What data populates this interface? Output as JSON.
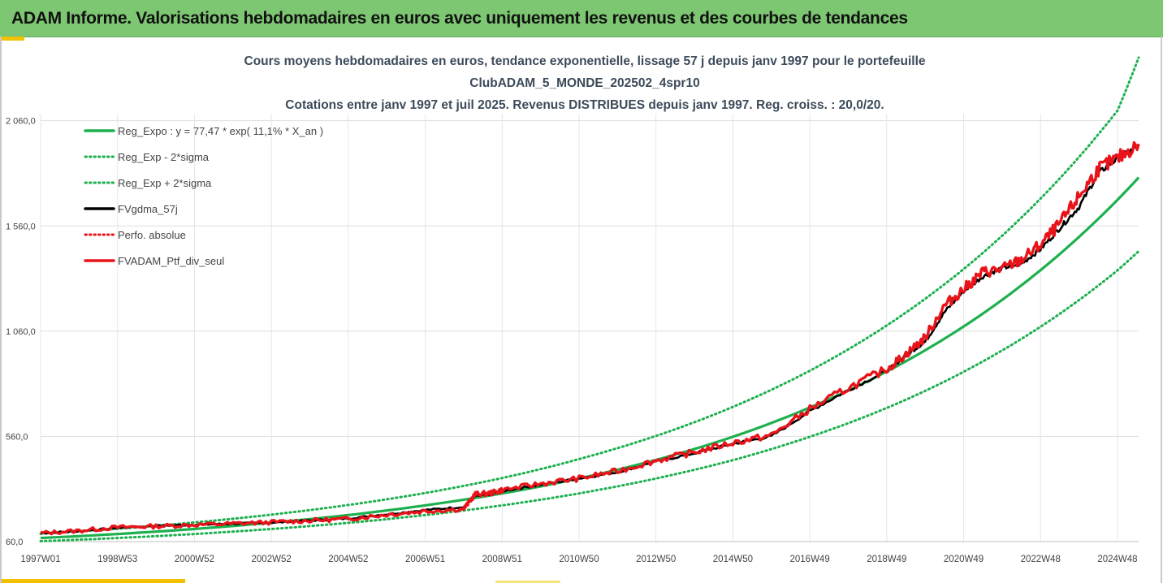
{
  "header": {
    "title": "ADAM Informe. Valorisations hebdomadaires en euros avec uniquement les revenus et des courbes de tendances"
  },
  "colors": {
    "header_bg": "#7dc672",
    "accent": "#f2c200",
    "regression": "#1db04f",
    "smoothed": "#000000",
    "portfolio": "#e8141a"
  },
  "chart_data": {
    "type": "line",
    "title_lines": [
      "Cours moyens hebdomadaires  en euros, tendance exponentielle, lissage 57 j depuis janv 1997 pour le portefeuille",
      "ClubADAM_5_MONDE_202502_4spr10",
      "Cotations  entre janv 1997 et juil 2025. Revenus DISTRIBUES depuis janv 1997. Reg. croiss. : 20,0/20."
    ],
    "ylim": [
      60,
      2460
    ],
    "y_ticks": [
      "60,0",
      "560,0",
      "1 060,0",
      "1 560,0",
      "2 060,0"
    ],
    "y_tick_values": [
      60,
      560,
      1060,
      1560,
      2060
    ],
    "x_ticks": [
      "1997W01",
      "1998W53",
      "2000W52",
      "2002W52",
      "2004W52",
      "2006W51",
      "2008W51",
      "2010W50",
      "2012W50",
      "2014W50",
      "2016W49",
      "2018W49",
      "2020W49",
      "2022W48",
      "2024W48"
    ],
    "x_tick_years": [
      1997.0,
      1999.0,
      2001.0,
      2003.0,
      2005.0,
      2007.0,
      2009.0,
      2011.0,
      2013.0,
      2015.0,
      2017.0,
      2019.0,
      2021.0,
      2023.0,
      2025.0
    ],
    "xlim": [
      1997.0,
      2025.55
    ],
    "grid": true,
    "legend_position": "top-left",
    "legend": [
      {
        "label": "Reg_Expo : y = 77,47 * exp( 11,1% *  X_an )",
        "color": "#1db04f",
        "style": "solid"
      },
      {
        "label": "Reg_Exp - 2*sigma",
        "color": "#1db04f",
        "style": "dotted"
      },
      {
        "label": "Reg_Exp + 2*sigma",
        "color": "#1db04f",
        "style": "dotted"
      },
      {
        "label": "FVgdma_57j",
        "color": "#000000",
        "style": "solid"
      },
      {
        "label": "Perfo. absolue",
        "color": "#e8141a",
        "style": "dotted"
      },
      {
        "label": "FVADAM_Ptf_div_seul",
        "color": "#e8141a",
        "style": "solid"
      }
    ],
    "series": [
      {
        "name": "Reg_Expo : y = 77,47 * exp( 11,1% *  X_an )",
        "x": [
          1997,
          1999,
          2001,
          2003,
          2005,
          2007,
          2009,
          2011,
          2013,
          2015,
          2017,
          2019,
          2021,
          2023,
          2025,
          2025.55
        ],
        "values": [
          77,
          96,
          120,
          150,
          186,
          232,
          289,
          360,
          448,
          558,
          697,
          868,
          1082,
          1350,
          1684,
          1790
        ]
      },
      {
        "name": "Reg_Exp - 2*sigma",
        "x": [
          1997,
          1999,
          2001,
          2003,
          2005,
          2007,
          2009,
          2011,
          2013,
          2015,
          2017,
          2019,
          2021,
          2023,
          2025,
          2025.55
        ],
        "values": [
          62,
          77,
          96,
          120,
          149,
          186,
          232,
          289,
          360,
          447,
          558,
          695,
          867,
          1081,
          1349,
          1440
        ]
      },
      {
        "name": "Reg_Exp + 2*sigma",
        "x": [
          1997,
          1999,
          2001,
          2003,
          2005,
          2007,
          2009,
          2011,
          2013,
          2015,
          2017,
          2019,
          2021,
          2023,
          2025,
          2025.55
        ],
        "values": [
          97,
          121,
          151,
          188,
          234,
          291,
          362,
          452,
          562,
          700,
          872,
          1087,
          1355,
          1690,
          2108,
          2360
        ]
      },
      {
        "name": "FVgdma_57j",
        "x": [
          1997,
          1998,
          1999,
          2000,
          2001,
          2002,
          2003,
          2004,
          2005,
          2006,
          2007,
          2008,
          2008.3,
          2008.7,
          2009,
          2010,
          2011,
          2012,
          2013,
          2014,
          2015,
          2016,
          2017,
          2018,
          2019,
          2019.5,
          2020,
          2020.5,
          2021,
          2021.5,
          2022,
          2022.5,
          2023,
          2023.5,
          2024,
          2024.5,
          2025,
          2025.55
        ],
        "values": [
          100,
          110,
          125,
          135,
          140,
          145,
          150,
          160,
          170,
          190,
          210,
          225,
          275,
          285,
          300,
          330,
          360,
          390,
          440,
          480,
          525,
          560,
          680,
          780,
          870,
          945,
          1010,
          1150,
          1250,
          1320,
          1360,
          1380,
          1450,
          1550,
          1650,
          1810,
          1880,
          1940
        ]
      },
      {
        "name": "FVADAM_Ptf_div_seul",
        "x": [
          1997,
          1998,
          1999,
          2000,
          2001,
          2002,
          2003,
          2004,
          2005,
          2006,
          2007,
          2008,
          2008.3,
          2008.7,
          2009,
          2010,
          2011,
          2012,
          2013,
          2014,
          2015,
          2016,
          2017,
          2018,
          2019,
          2019.5,
          2020,
          2020.5,
          2021,
          2021.5,
          2022,
          2022.5,
          2023,
          2023.5,
          2024,
          2024.5,
          2025,
          2025.55
        ],
        "values": [
          100,
          112,
          128,
          133,
          140,
          145,
          152,
          160,
          168,
          188,
          205,
          215,
          285,
          290,
          305,
          335,
          360,
          395,
          445,
          485,
          530,
          565,
          690,
          790,
          880,
          950,
          1030,
          1180,
          1260,
          1340,
          1355,
          1400,
          1470,
          1570,
          1700,
          1830,
          1880,
          1950
        ]
      }
    ]
  }
}
